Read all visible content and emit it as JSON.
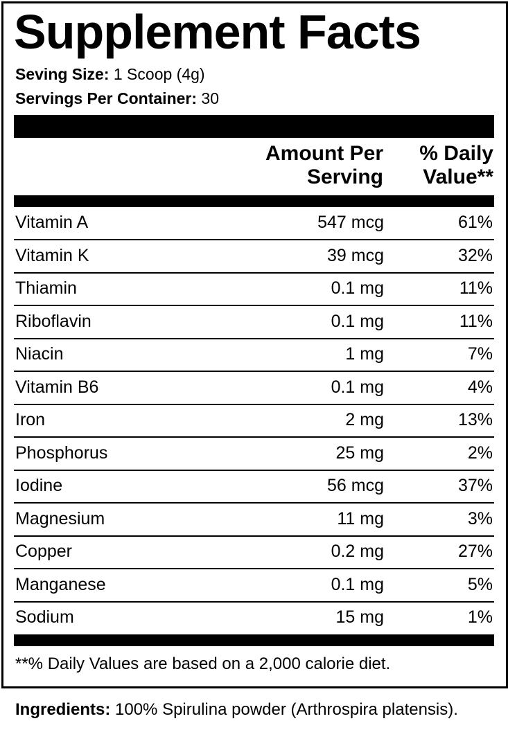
{
  "label": {
    "title": "Supplement Facts",
    "serving_size_label": "Seving Size:",
    "serving_size_value": " 1 Scoop (4g)",
    "servings_per_container_label": "Servings Per Container:",
    "servings_per_container_value": " 30",
    "columns": {
      "amount_line1": "Amount Per",
      "amount_line2": "Serving",
      "dv_line1": "% Daily",
      "dv_line2": "Value**"
    },
    "rows": [
      {
        "name": "Vitamin A",
        "amount": "547 mcg",
        "dv": "61%"
      },
      {
        "name": "Vitamin K",
        "amount": "39 mcg",
        "dv": "32%"
      },
      {
        "name": "Thiamin",
        "amount": "0.1 mg",
        "dv": "11%"
      },
      {
        "name": "Riboflavin",
        "amount": "0.1 mg",
        "dv": "11%"
      },
      {
        "name": "Niacin",
        "amount": "1 mg",
        "dv": "7%"
      },
      {
        "name": "Vitamin B6",
        "amount": "0.1 mg",
        "dv": "4%"
      },
      {
        "name": "Iron",
        "amount": "2 mg",
        "dv": "13%"
      },
      {
        "name": "Phosphorus",
        "amount": "25 mg",
        "dv": "2%"
      },
      {
        "name": "Iodine",
        "amount": "56 mcg",
        "dv": "37%"
      },
      {
        "name": "Magnesium",
        "amount": "11 mg",
        "dv": "3%"
      },
      {
        "name": "Copper",
        "amount": "0.2 mg",
        "dv": "27%"
      },
      {
        "name": "Manganese",
        "amount": "0.1 mg",
        "dv": "5%"
      },
      {
        "name": "Sodium",
        "amount": "15 mg",
        "dv": "1%"
      }
    ],
    "footnote": "**% Daily Values are based on a 2,000 calorie diet."
  },
  "ingredients": {
    "label": "Ingredients:",
    "text": " 100% Spirulina powder (Arthrospira platensis)."
  }
}
